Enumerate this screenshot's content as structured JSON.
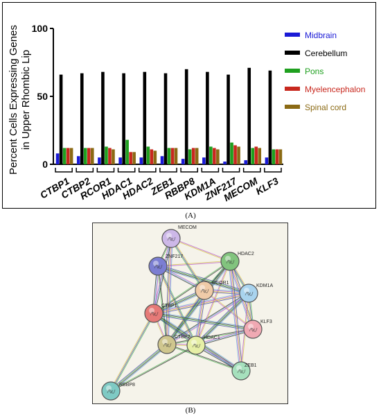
{
  "chart_data": {
    "type": "bar",
    "ylabel": "Percent Cells Expressing Genes in Upper Rhombic Lip",
    "ylim": [
      0,
      100
    ],
    "yticks": [
      0,
      50,
      100
    ],
    "categories": [
      "CTBP1",
      "CTBP2",
      "RCOR1",
      "HDAC1",
      "HDAC2",
      "ZEB1",
      "RBBP8",
      "KDM1A",
      "ZNF217",
      "MECOM",
      "KLF3"
    ],
    "series": [
      {
        "name": "Midbrain",
        "color": "#1a1ad6",
        "values": [
          8,
          6,
          5,
          5,
          5,
          6,
          4,
          5,
          2,
          3,
          5
        ]
      },
      {
        "name": "Cerebellum",
        "color": "#000000",
        "values": [
          66,
          67,
          68,
          67,
          68,
          67,
          70,
          68,
          66,
          71,
          69
        ]
      },
      {
        "name": "Pons",
        "color": "#1fa01f",
        "values": [
          12,
          12,
          13,
          18,
          13,
          12,
          11,
          13,
          16,
          12,
          11
        ]
      },
      {
        "name": "Myelencephalon",
        "color": "#c8281e",
        "values": [
          12,
          12,
          12,
          9,
          11,
          12,
          12,
          12,
          14,
          13,
          11
        ]
      },
      {
        "name": "Spinal cord",
        "color": "#8b6a14",
        "values": [
          12,
          12,
          11,
          9,
          10,
          12,
          12,
          11,
          13,
          12,
          11
        ]
      }
    ],
    "grid": false,
    "legend": "right"
  },
  "panel_a_label": "(A)",
  "panel_b_label": "(B)",
  "network": {
    "nodes": [
      "MECOM",
      "ZNF217",
      "HDAC2",
      "RCOR1",
      "KDM1A",
      "CTBP1",
      "KLF3",
      "CTBP2",
      "HDAC1",
      "ZEB1",
      "RBBP8"
    ]
  }
}
